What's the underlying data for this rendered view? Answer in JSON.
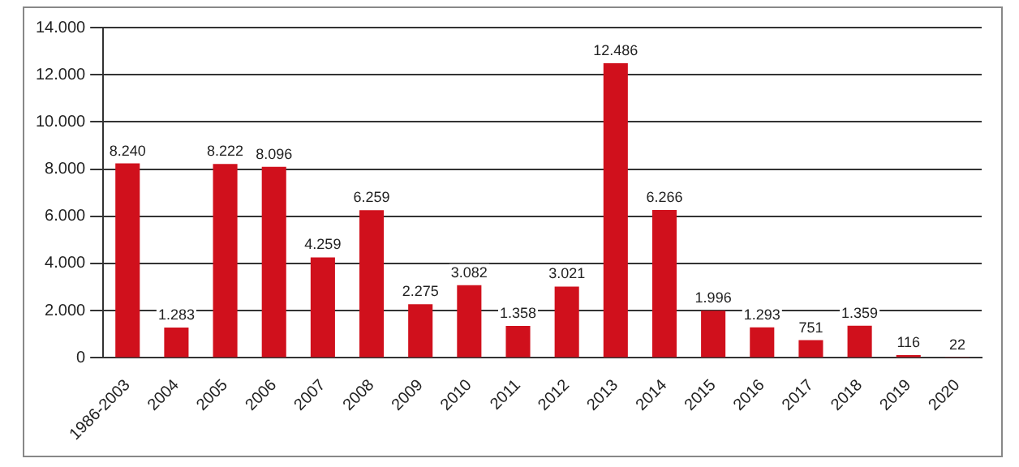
{
  "chart_data": {
    "type": "bar",
    "categories": [
      "1986-2003",
      "2004",
      "2005",
      "2006",
      "2007",
      "2008",
      "2009",
      "2010",
      "2011",
      "2012",
      "2013",
      "2014",
      "2015",
      "2016",
      "2017",
      "2018",
      "2019",
      "2020"
    ],
    "values": [
      8240,
      1283,
      8222,
      8096,
      4259,
      6259,
      2275,
      3082,
      1358,
      3021,
      12486,
      6266,
      1996,
      1293,
      751,
      1359,
      116,
      22
    ],
    "value_labels": [
      "8.240",
      "1.283",
      "8.222",
      "8.096",
      "4.259",
      "6.259",
      "2.275",
      "3.082",
      "1.358",
      "3.021",
      "12.486",
      "6.266",
      "1.996",
      "1.293",
      "751",
      "1.359",
      "116",
      "22"
    ],
    "color": "#d0101c",
    "ylim": [
      0,
      14000
    ],
    "yticks": [
      {
        "value": 0,
        "label": "0"
      },
      {
        "value": 2000,
        "label": "2.000"
      },
      {
        "value": 4000,
        "label": "4.000"
      },
      {
        "value": 6000,
        "label": "6.000"
      },
      {
        "value": 8000,
        "label": "8.000"
      },
      {
        "value": 10000,
        "label": "10.000"
      },
      {
        "value": 12000,
        "label": "12.000"
      },
      {
        "value": 14000,
        "label": "14.000"
      }
    ],
    "grid": "y",
    "legend": false
  }
}
